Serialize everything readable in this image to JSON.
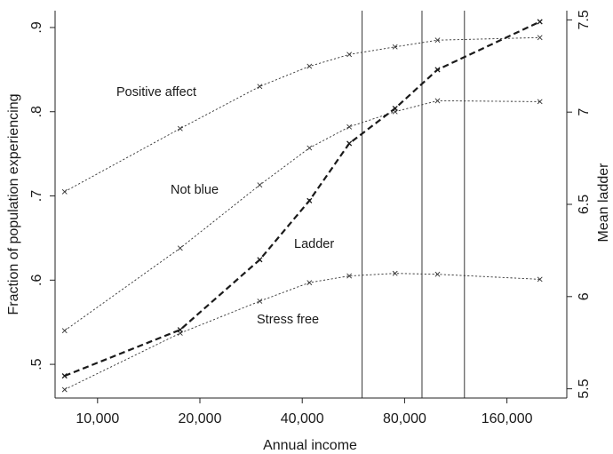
{
  "chart_data": {
    "type": "line",
    "xlabel": "Annual income",
    "ylabel_left": "Fraction of population experiencing",
    "ylabel_right": "Mean ladder",
    "x_scale": "log2",
    "x_ticks": [
      10000,
      20000,
      40000,
      80000,
      160000
    ],
    "x_tick_labels": [
      "10,000",
      "20,000",
      "40,000",
      "80,000",
      "160,000"
    ],
    "xlim": [
      7500,
      240000
    ],
    "ylim_left": [
      0.46,
      0.92
    ],
    "y_ticks_left": [
      0.5,
      0.6,
      0.7,
      0.8,
      0.9
    ],
    "y_tick_labels_left": [
      ".5",
      ".6",
      ".7",
      ".8",
      ".9"
    ],
    "ylim_right": [
      5.45,
      7.55
    ],
    "y_ticks_right": [
      5.5,
      6,
      6.5,
      7,
      7.5
    ],
    "y_tick_labels_right": [
      "5.5",
      "6",
      "6.5",
      "7",
      "7.5"
    ],
    "vertical_lines_x": [
      60000,
      90000,
      120000
    ],
    "grid": false,
    "legend": "none",
    "series": [
      {
        "name": "Positive affect",
        "axis": "left",
        "style": "dotted",
        "color": "#333333",
        "x": [
          8000,
          17500,
          30000,
          42000,
          55000,
          75000,
          100000,
          200000
        ],
        "values": [
          0.705,
          0.78,
          0.83,
          0.854,
          0.868,
          0.877,
          0.885,
          0.888
        ]
      },
      {
        "name": "Not blue",
        "axis": "left",
        "style": "dotted",
        "color": "#333333",
        "x": [
          8000,
          17500,
          30000,
          42000,
          55000,
          75000,
          100000,
          200000
        ],
        "values": [
          0.54,
          0.638,
          0.713,
          0.757,
          0.782,
          0.8,
          0.813,
          0.812
        ]
      },
      {
        "name": "Stress free",
        "axis": "left",
        "style": "dotted",
        "color": "#333333",
        "x": [
          8000,
          17500,
          30000,
          42000,
          55000,
          75000,
          100000,
          200000
        ],
        "values": [
          0.47,
          0.537,
          0.575,
          0.597,
          0.605,
          0.608,
          0.607,
          0.601
        ]
      },
      {
        "name": "Ladder",
        "axis": "right",
        "style": "dashed-bold",
        "color": "#1a1a1a",
        "x": [
          8000,
          17500,
          30000,
          42000,
          55000,
          75000,
          100000,
          200000
        ],
        "values": [
          5.57,
          5.82,
          6.2,
          6.52,
          6.83,
          7.02,
          7.23,
          7.49
        ]
      }
    ]
  }
}
